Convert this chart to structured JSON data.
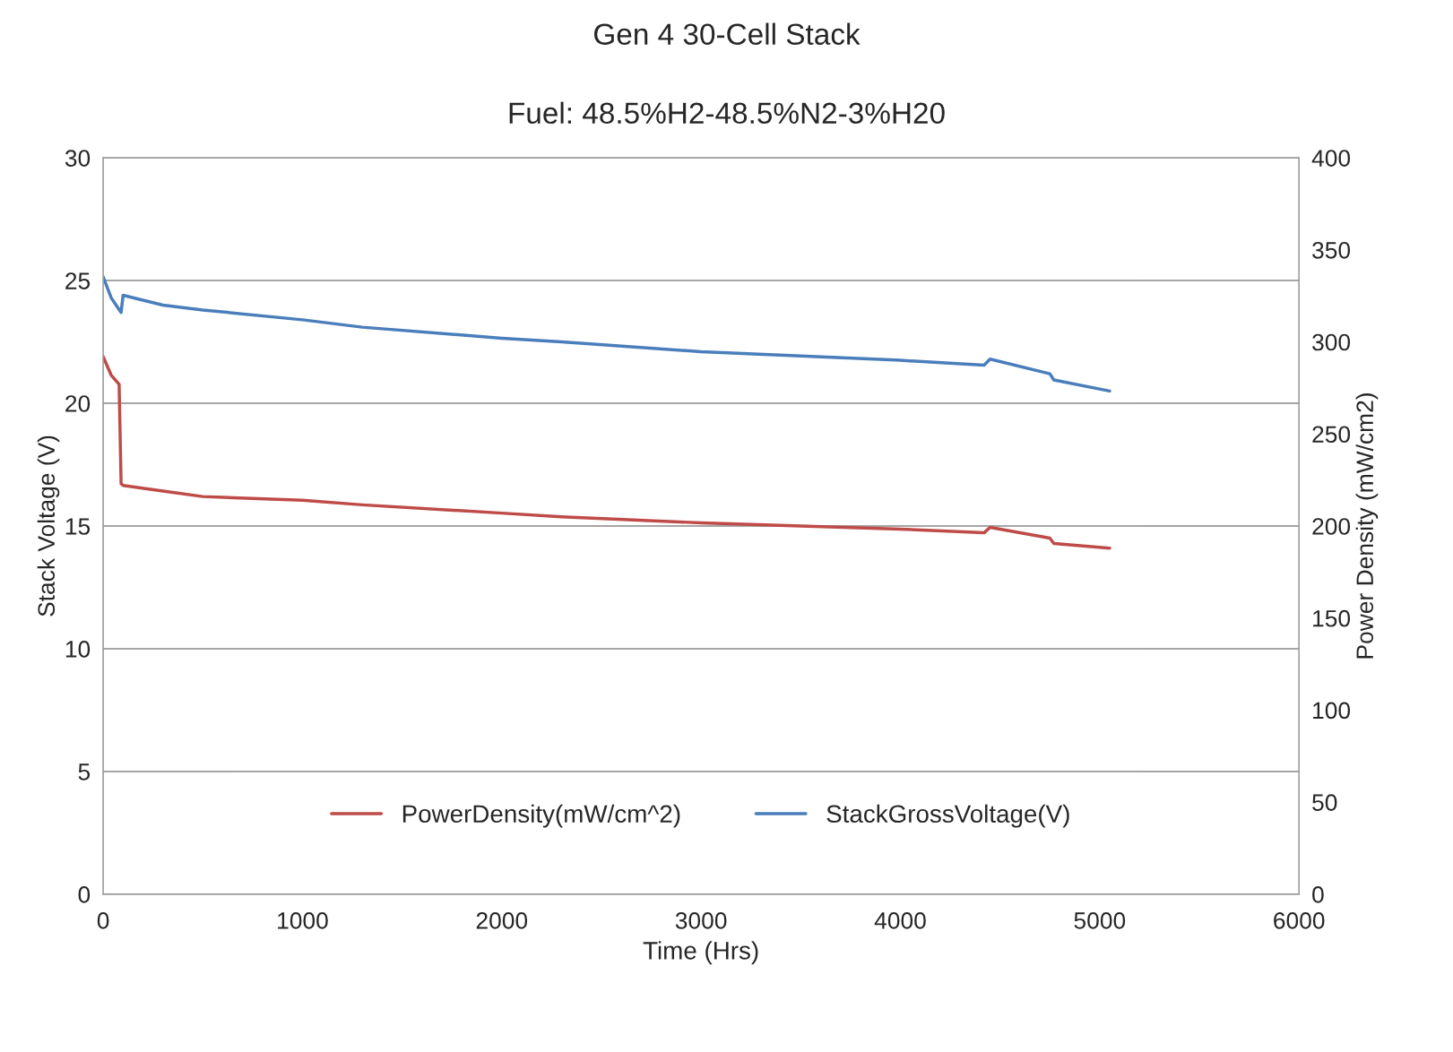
{
  "chart_data": {
    "type": "line",
    "title": "Gen 4 30-Cell Stack",
    "subtitle": "Fuel: 48.5%H2-48.5%N2-3%H20",
    "xlabel": "Time (Hrs)",
    "ylabel": "Stack Voltage (V)",
    "y2label": "Power Density (mW/cm2)",
    "xlim": [
      0,
      6000
    ],
    "xticks": [
      0,
      1000,
      2000,
      3000,
      4000,
      5000,
      6000
    ],
    "ylim": [
      0,
      30
    ],
    "yticks": [
      0,
      5,
      10,
      15,
      20,
      25,
      30
    ],
    "y2lim": [
      0,
      400
    ],
    "y2ticks": [
      0,
      50,
      100,
      150,
      200,
      250,
      300,
      350,
      400
    ],
    "grid": "y",
    "legend": "bottom",
    "marker": "none",
    "line_style": "solid",
    "series": [
      {
        "name": "PowerDensity(mW/cm^2)",
        "color": "#be4b48",
        "axis": "y2",
        "x": [
          0,
          40,
          80,
          90,
          100,
          300,
          500,
          1000,
          1300,
          2000,
          2300,
          3000,
          4000,
          4420,
          4450,
          4750,
          4770,
          5050
        ],
        "values": [
          292,
          282,
          277,
          223,
          222,
          219,
          216,
          214,
          211.5,
          207,
          205,
          201.7,
          198.3,
          196.3,
          199.3,
          193.4,
          190.5,
          188
        ]
      },
      {
        "name": "StackGrossVoltage(V)",
        "color": "#4a7ebb",
        "axis": "y",
        "x": [
          0,
          40,
          90,
          100,
          300,
          500,
          1000,
          1300,
          2000,
          2300,
          3000,
          4000,
          4420,
          4450,
          4750,
          4770,
          5050
        ],
        "values": [
          25.15,
          24.3,
          23.7,
          24.4,
          24,
          23.8,
          23.4,
          23.1,
          22.65,
          22.5,
          22.1,
          21.75,
          21.55,
          21.8,
          21.2,
          20.95,
          20.5
        ]
      }
    ]
  }
}
